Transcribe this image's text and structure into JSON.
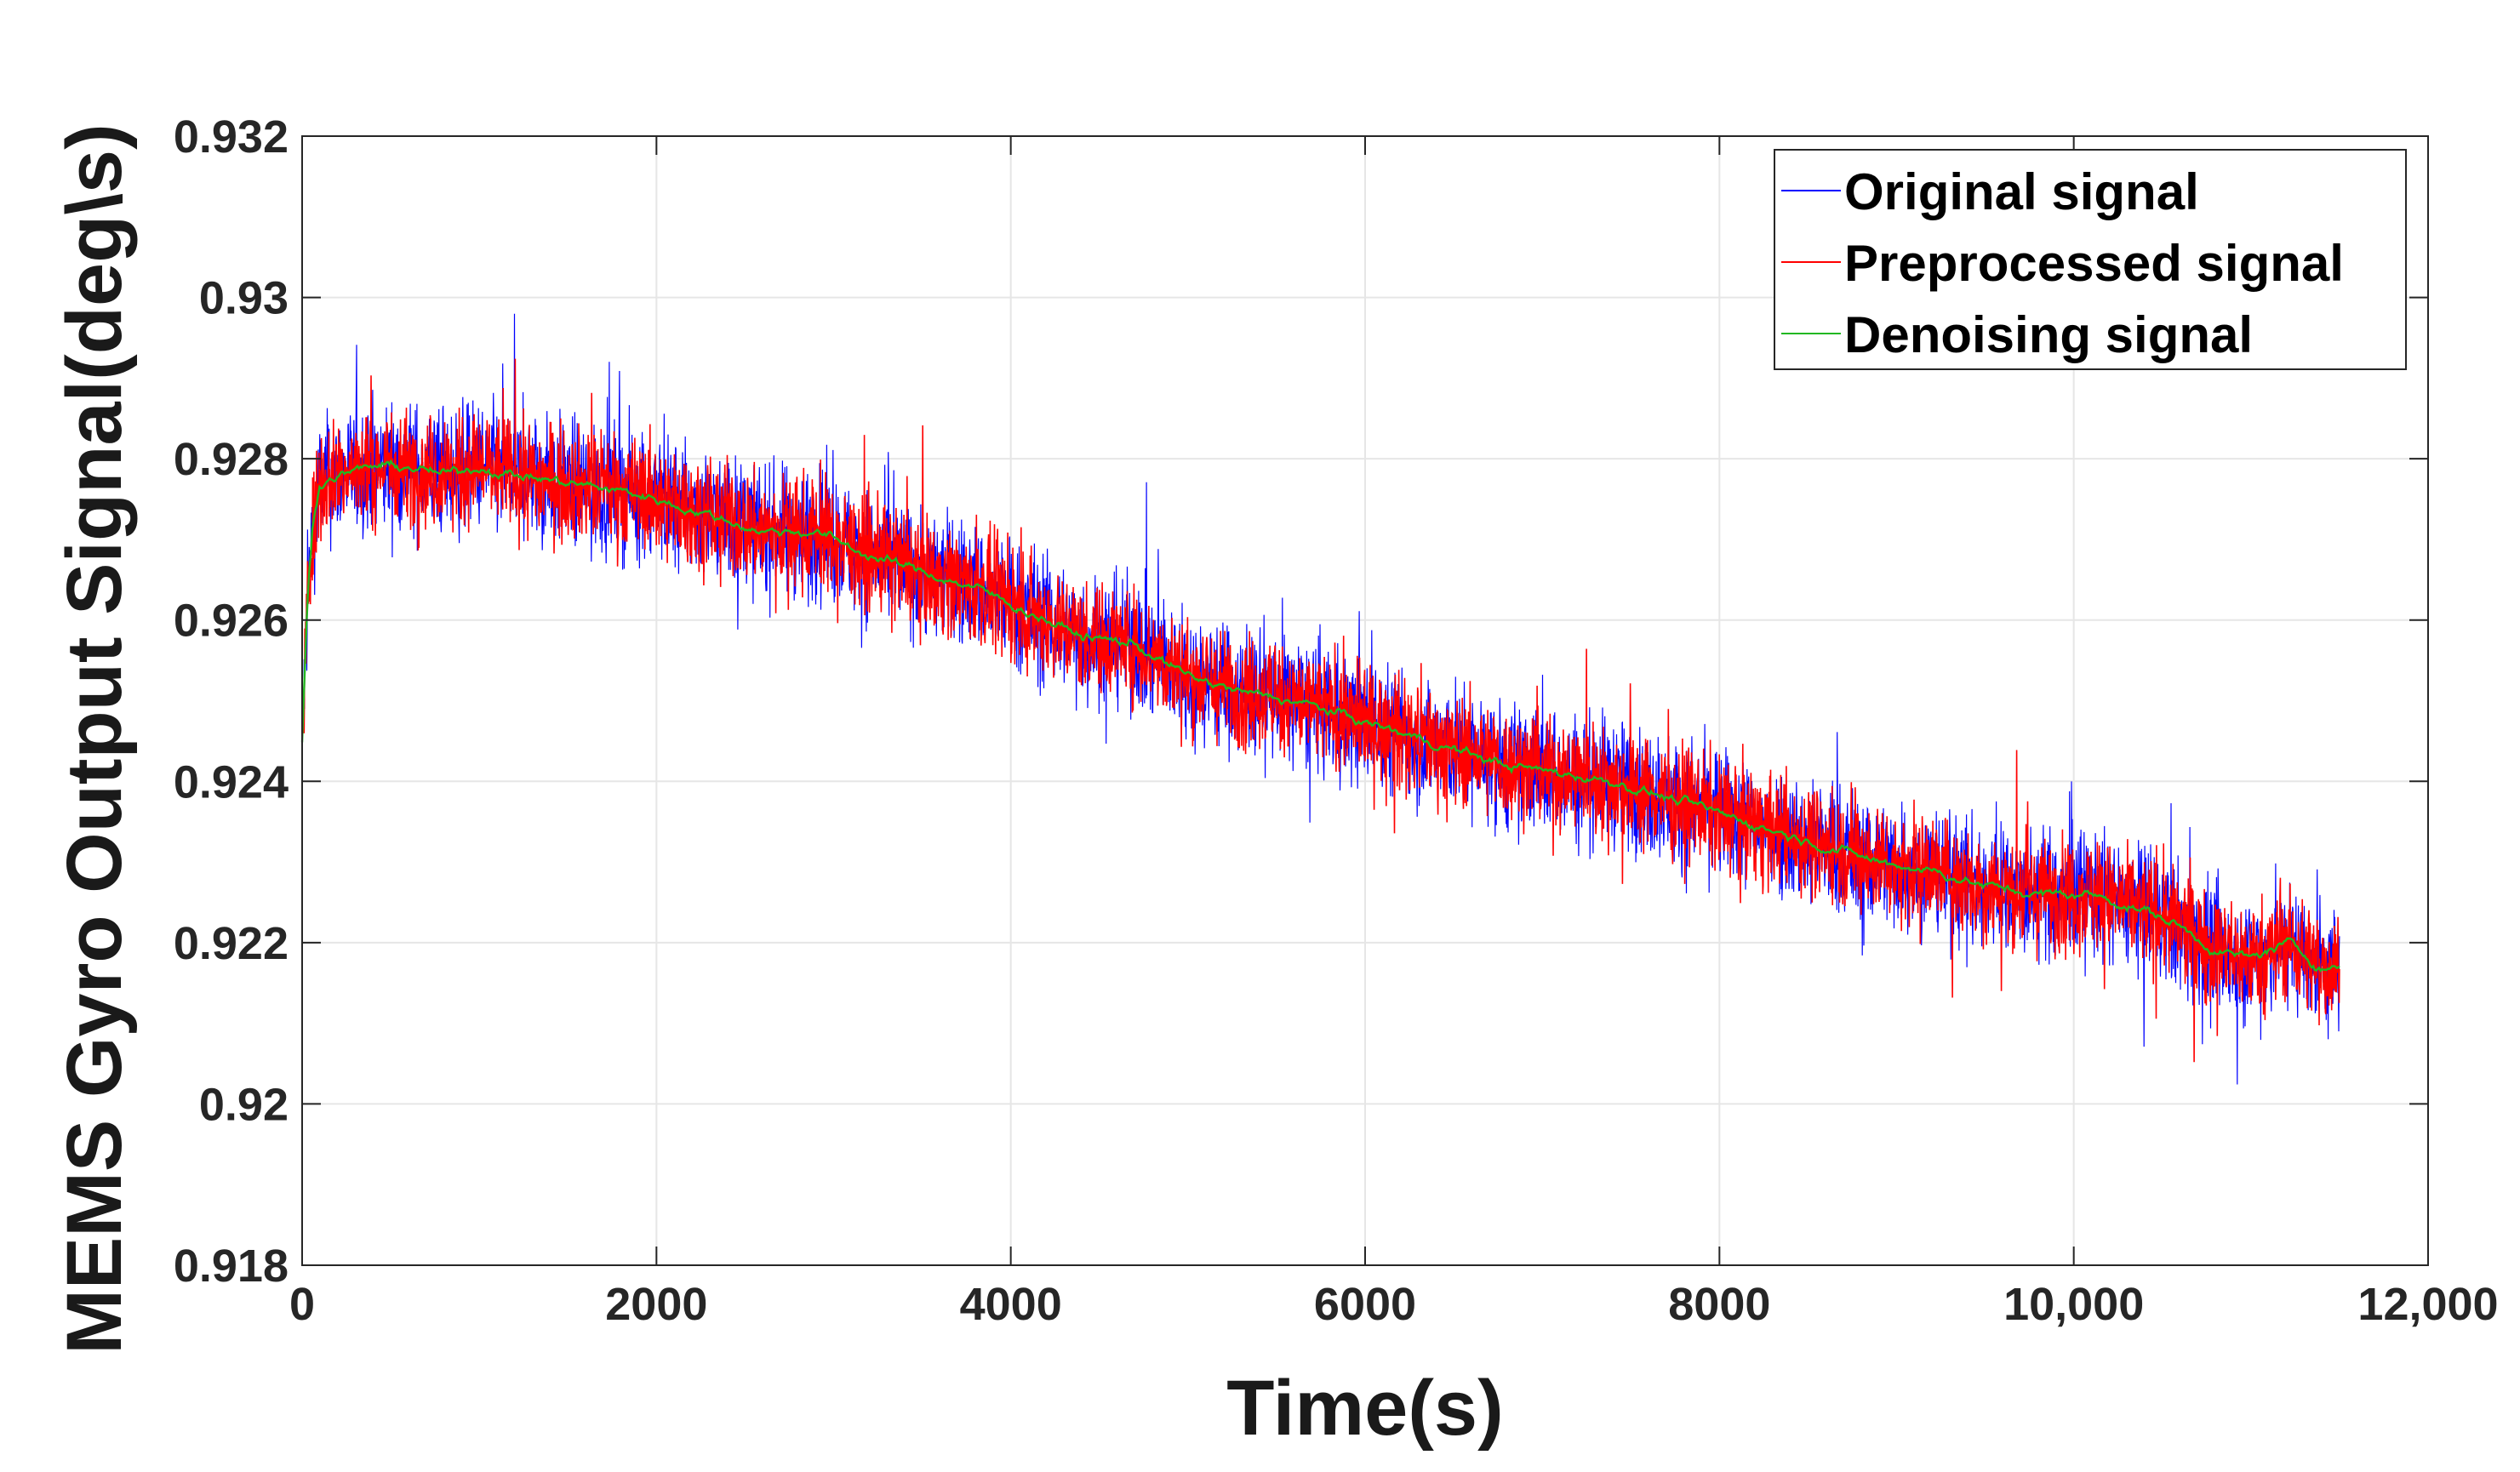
{
  "chart_data": {
    "type": "line",
    "title": "",
    "xlabel": "Time(s)",
    "ylabel": "MEMS Gyro Output Signal(deg\\s)",
    "xlim": [
      0,
      12000
    ],
    "ylim": [
      0.918,
      0.932
    ],
    "x_ticks": [
      0,
      2000,
      4000,
      6000,
      8000,
      10000,
      12000
    ],
    "x_tick_labels": [
      "0",
      "2000",
      "4000",
      "6000",
      "8000",
      "10,000",
      "12,000"
    ],
    "y_ticks": [
      0.918,
      0.92,
      0.922,
      0.924,
      0.926,
      0.928,
      0.93,
      0.932
    ],
    "y_tick_labels": [
      "0.918",
      "0.92",
      "0.922",
      "0.924",
      "0.926",
      "0.928",
      "0.93",
      "0.932"
    ],
    "grid": true,
    "legend_position": "top-right",
    "series": [
      {
        "name": "Original signal",
        "color": "#0000ff",
        "style": "noisy",
        "x": [
          0,
          30,
          60,
          100,
          200,
          400,
          600,
          800,
          1000,
          1200,
          1500,
          1800,
          2000,
          2300,
          2600,
          2900,
          3200,
          3500,
          3800,
          4100,
          4400,
          4700,
          5000,
          5300,
          5600,
          5900,
          6200,
          6500,
          6800,
          7100,
          7400,
          7700,
          8000,
          8300,
          8600,
          8900,
          9200,
          9500,
          9800,
          10100,
          10400,
          10600,
          10800,
          11000,
          11200,
          11400,
          11500
        ],
        "values": [
          0.9245,
          0.9262,
          0.9272,
          0.9277,
          0.9278,
          0.9279,
          0.9279,
          0.9278,
          0.9279,
          0.9278,
          0.9277,
          0.9276,
          0.9275,
          0.9273,
          0.9271,
          0.9271,
          0.9268,
          0.9266,
          0.9264,
          0.9261,
          0.9258,
          0.9257,
          0.9253,
          0.9251,
          0.925,
          0.9248,
          0.9246,
          0.9244,
          0.9242,
          0.9241,
          0.924,
          0.9238,
          0.9236,
          0.9234,
          0.9232,
          0.923,
          0.9229,
          0.9227,
          0.9226,
          0.9226,
          0.9224,
          0.9222,
          0.9219,
          0.9218,
          0.922,
          0.9217,
          0.9217
        ],
        "noise_amplitude": 0.0014
      },
      {
        "name": "Preprocessed signal",
        "color": "#ff0000",
        "style": "noisy",
        "x": [
          0,
          30,
          60,
          100,
          200,
          400,
          600,
          800,
          1000,
          1200,
          1500,
          1800,
          2000,
          2300,
          2600,
          2900,
          3200,
          3500,
          3800,
          4100,
          4400,
          4700,
          5000,
          5300,
          5600,
          5900,
          6200,
          6500,
          6800,
          7100,
          7400,
          7700,
          8000,
          8300,
          8600,
          8900,
          9200,
          9500,
          9800,
          10100,
          10400,
          10600,
          10800,
          11000,
          11200,
          11400,
          11500
        ],
        "values": [
          0.9245,
          0.9262,
          0.9272,
          0.9277,
          0.9278,
          0.9279,
          0.9279,
          0.9278,
          0.9279,
          0.9278,
          0.9277,
          0.9276,
          0.9275,
          0.9273,
          0.9271,
          0.9271,
          0.9268,
          0.9266,
          0.9264,
          0.9261,
          0.9258,
          0.9257,
          0.9253,
          0.9251,
          0.925,
          0.9248,
          0.9246,
          0.9244,
          0.9242,
          0.9241,
          0.924,
          0.9238,
          0.9236,
          0.9234,
          0.9232,
          0.923,
          0.9229,
          0.9227,
          0.9226,
          0.9226,
          0.9224,
          0.9222,
          0.9219,
          0.9218,
          0.922,
          0.9217,
          0.9217
        ],
        "noise_amplitude": 0.0012
      },
      {
        "name": "Denoising signal",
        "color": "#22b822",
        "style": "smooth",
        "x": [
          0,
          30,
          60,
          100,
          200,
          400,
          600,
          800,
          1000,
          1200,
          1500,
          1800,
          2000,
          2300,
          2600,
          2900,
          3200,
          3500,
          3800,
          4100,
          4400,
          4700,
          5000,
          5300,
          5600,
          5900,
          6200,
          6500,
          6800,
          7100,
          7400,
          7700,
          8000,
          8300,
          8600,
          8900,
          9200,
          9500,
          9800,
          10100,
          10400,
          10600,
          10800,
          11000,
          11200,
          11400,
          11500
        ],
        "values": [
          0.9245,
          0.9262,
          0.9272,
          0.9277,
          0.9278,
          0.9279,
          0.9279,
          0.9278,
          0.9279,
          0.9278,
          0.9277,
          0.9276,
          0.9275,
          0.9273,
          0.9271,
          0.9271,
          0.9268,
          0.9266,
          0.9264,
          0.9261,
          0.9258,
          0.9257,
          0.9253,
          0.9251,
          0.925,
          0.9248,
          0.9246,
          0.9244,
          0.9242,
          0.9241,
          0.924,
          0.9238,
          0.9236,
          0.9234,
          0.9232,
          0.923,
          0.9229,
          0.9227,
          0.9226,
          0.9226,
          0.9224,
          0.9222,
          0.9219,
          0.9218,
          0.922,
          0.9217,
          0.9217
        ],
        "noise_amplitude": 6e-05
      }
    ]
  }
}
